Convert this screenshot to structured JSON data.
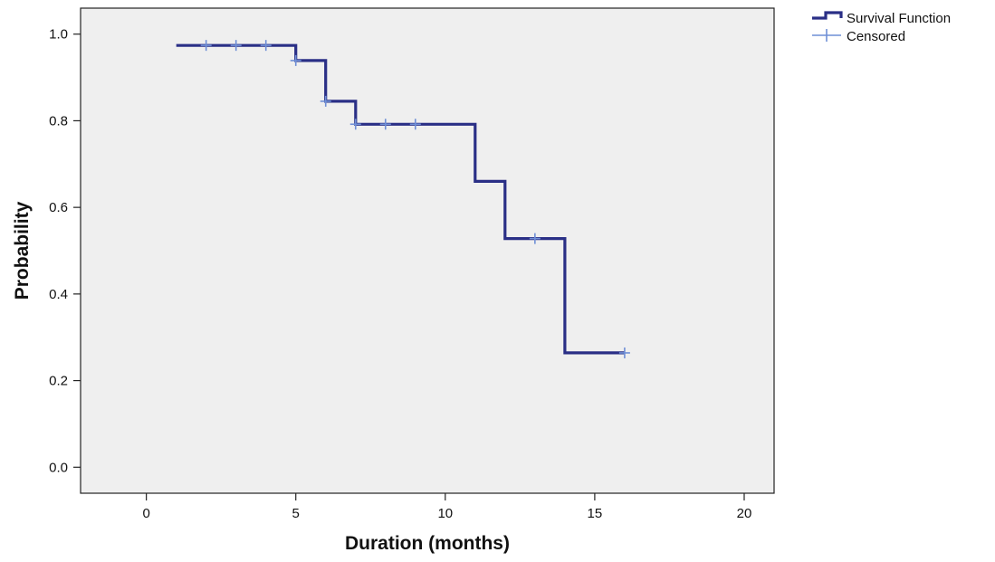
{
  "chart_data": {
    "type": "line",
    "subtype": "kaplan-meier-step",
    "xlabel": "Duration (months)",
    "ylabel": "Probability",
    "xlim": [
      -2.2,
      21
    ],
    "ylim": [
      -0.06,
      1.06
    ],
    "xticks": [
      0,
      5,
      10,
      15,
      20
    ],
    "yticks": [
      0.0,
      0.2,
      0.4,
      0.6,
      0.8,
      1.0
    ],
    "xtick_labels": [
      "0",
      "5",
      "10",
      "15",
      "20"
    ],
    "ytick_labels": [
      "0.0",
      "0.2",
      "0.4",
      "0.6",
      "0.8",
      "1.0"
    ],
    "grid": false,
    "legend_position": "top-right outside plot",
    "series": [
      {
        "name": "Survival Function",
        "step_points": [
          [
            1,
            0.974
          ],
          [
            5,
            0.974
          ],
          [
            5,
            0.939
          ],
          [
            6,
            0.939
          ],
          [
            6,
            0.845
          ],
          [
            7,
            0.845
          ],
          [
            7,
            0.792
          ],
          [
            11,
            0.792
          ],
          [
            11,
            0.66
          ],
          [
            12,
            0.66
          ],
          [
            12,
            0.528
          ],
          [
            14,
            0.528
          ],
          [
            14,
            0.264
          ],
          [
            16,
            0.264
          ]
        ],
        "color": "#2a2f86"
      },
      {
        "name": "Censored",
        "points": [
          [
            2,
            0.974
          ],
          [
            3,
            0.974
          ],
          [
            4,
            0.974
          ],
          [
            5,
            0.939
          ],
          [
            6,
            0.845
          ],
          [
            7,
            0.792
          ],
          [
            8,
            0.792
          ],
          [
            9,
            0.792
          ],
          [
            13,
            0.528
          ],
          [
            16,
            0.264
          ]
        ],
        "color": "#6f8fd6"
      }
    ],
    "colors": {
      "plot_background": "#efefef",
      "axis": "#222222"
    }
  }
}
